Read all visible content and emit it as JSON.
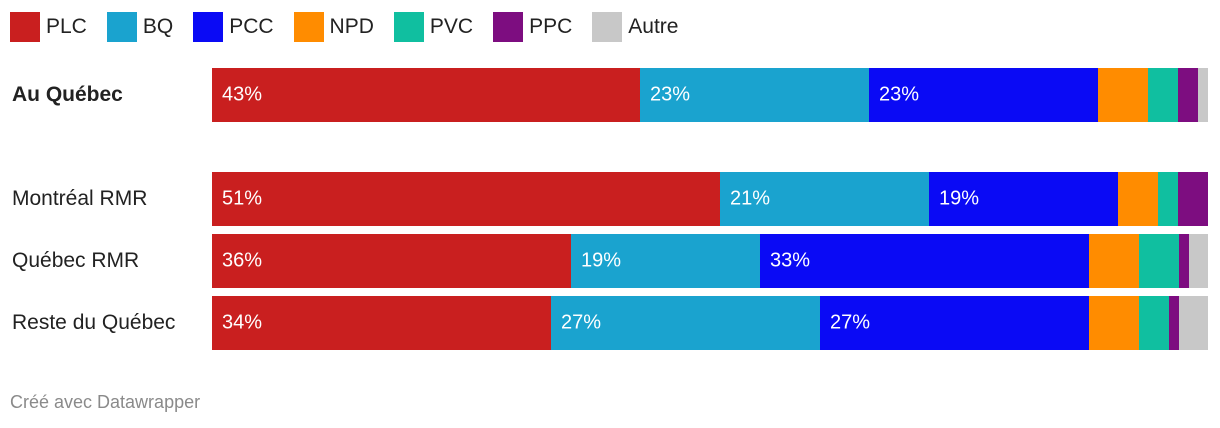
{
  "legend": [
    {
      "label": "PLC",
      "color": "#c91f1f"
    },
    {
      "label": "BQ",
      "color": "#1aa3cf"
    },
    {
      "label": "PCC",
      "color": "#0a0af5"
    },
    {
      "label": "NPD",
      "color": "#ff8c00"
    },
    {
      "label": "PVC",
      "color": "#10bfa0"
    },
    {
      "label": "PPC",
      "color": "#7d0d80"
    },
    {
      "label": "Autre",
      "color": "#c8c8c8"
    }
  ],
  "chart_data": {
    "type": "bar",
    "orientation": "horizontal",
    "stacked": true,
    "percent_scale": [
      0,
      100
    ],
    "categories": [
      "Au Québec",
      "Montréal RMR",
      "Québec RMR",
      "Reste du Québec"
    ],
    "series": [
      {
        "name": "PLC",
        "color": "#c91f1f",
        "values": [
          43,
          51,
          36,
          34
        ],
        "labels": [
          "43%",
          "51%",
          "36%",
          "34%"
        ]
      },
      {
        "name": "BQ",
        "color": "#1aa3cf",
        "values": [
          23,
          21,
          19,
          27
        ],
        "labels": [
          "23%",
          "21%",
          "19%",
          "27%"
        ]
      },
      {
        "name": "PCC",
        "color": "#0a0af5",
        "values": [
          23,
          19,
          33,
          27
        ],
        "labels": [
          "23%",
          "19%",
          "33%",
          "27%"
        ]
      },
      {
        "name": "NPD",
        "color": "#ff8c00",
        "values": [
          5,
          4,
          5,
          5
        ],
        "labels": [
          "",
          "",
          "",
          ""
        ]
      },
      {
        "name": "PVC",
        "color": "#10bfa0",
        "values": [
          3,
          2,
          4,
          3
        ],
        "labels": [
          "",
          "",
          "",
          ""
        ]
      },
      {
        "name": "PPC",
        "color": "#7d0d80",
        "values": [
          2,
          3,
          1,
          1
        ],
        "labels": [
          "",
          "",
          "",
          ""
        ]
      },
      {
        "name": "Autre",
        "color": "#c8c8c8",
        "values": [
          1,
          0,
          2,
          3
        ],
        "labels": [
          "",
          "",
          "",
          ""
        ]
      }
    ]
  },
  "footer": "Créé avec Datawrapper"
}
